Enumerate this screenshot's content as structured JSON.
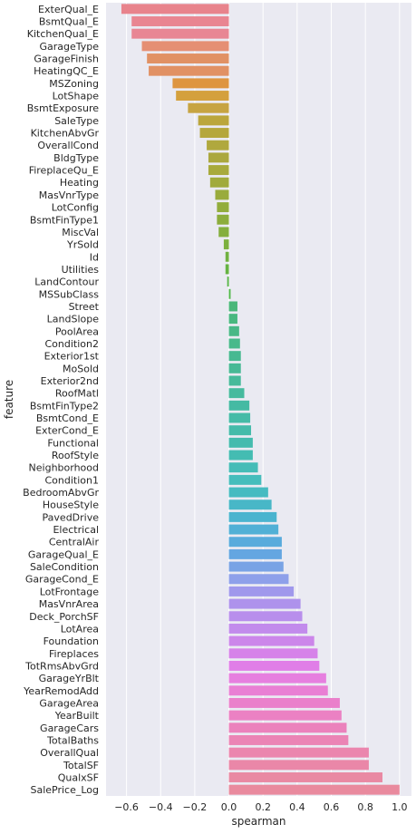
{
  "chart_data": {
    "type": "bar",
    "orientation": "horizontal",
    "xlabel": "spearman",
    "ylabel": "feature",
    "xlim": [
      -0.72,
      1.07
    ],
    "xticks": [
      "−0.6",
      "−0.4",
      "−0.2",
      "0.0",
      "0.2",
      "0.4",
      "0.6",
      "0.8",
      "1.0"
    ],
    "xtick_values": [
      -0.6,
      -0.4,
      -0.2,
      0.0,
      0.2,
      0.4,
      0.6,
      0.8,
      1.0
    ],
    "grid": true,
    "background": "#eaeaf2",
    "categories": [
      "ExterQual_E",
      "BsmtQual_E",
      "KitchenQual_E",
      "GarageType",
      "GarageFinish",
      "HeatingQC_E",
      "MSZoning",
      "LotShape",
      "BsmtExposure",
      "SaleType",
      "KitchenAbvGr",
      "OverallCond",
      "BldgType",
      "FireplaceQu_E",
      "Heating",
      "MasVnrType",
      "LotConfig",
      "BsmtFinType1",
      "MiscVal",
      "YrSold",
      "Id",
      "Utilities",
      "LandContour",
      "MSSubClass",
      "Street",
      "LandSlope",
      "PoolArea",
      "Condition2",
      "Exterior1st",
      "MoSold",
      "Exterior2nd",
      "RoofMatl",
      "BsmtFinType2",
      "BsmtCond_E",
      "ExterCond_E",
      "Functional",
      "RoofStyle",
      "Neighborhood",
      "Condition1",
      "BedroomAbvGr",
      "HouseStyle",
      "PavedDrive",
      "Electrical",
      "CentralAir",
      "GarageQual_E",
      "SaleCondition",
      "GarageCond_E",
      "LotFrontage",
      "MasVnrArea",
      "Deck_PorchSF",
      "LotArea",
      "Foundation",
      "Fireplaces",
      "TotRmsAbvGrd",
      "GarageYrBlt",
      "YearRemodAdd",
      "GarageArea",
      "YearBuilt",
      "GarageCars",
      "TotalBaths",
      "OverallQual",
      "TotalSF",
      "QualxSF",
      "SalePrice_Log"
    ],
    "values": [
      -0.63,
      -0.57,
      -0.57,
      -0.51,
      -0.48,
      -0.47,
      -0.33,
      -0.31,
      -0.24,
      -0.18,
      -0.17,
      -0.13,
      -0.12,
      -0.12,
      -0.11,
      -0.08,
      -0.07,
      -0.07,
      -0.06,
      -0.03,
      -0.02,
      -0.02,
      -0.01,
      0.01,
      0.05,
      0.05,
      0.06,
      0.065,
      0.07,
      0.07,
      0.07,
      0.09,
      0.12,
      0.125,
      0.13,
      0.14,
      0.14,
      0.17,
      0.19,
      0.23,
      0.25,
      0.28,
      0.29,
      0.31,
      0.31,
      0.32,
      0.35,
      0.38,
      0.42,
      0.43,
      0.46,
      0.5,
      0.52,
      0.53,
      0.57,
      0.58,
      0.65,
      0.66,
      0.69,
      0.7,
      0.82,
      0.82,
      0.9,
      1.0
    ],
    "colors": [
      "#e8838c",
      "#e98591",
      "#e88694",
      "#e58f73",
      "#e19164",
      "#e19164",
      "#de9540",
      "#d4a03d",
      "#c7a442",
      "#bba63c",
      "#b5a73c",
      "#b0a83e",
      "#aba83e",
      "#a8aa3c",
      "#a1ab3c",
      "#99ab3c",
      "#92ad3c",
      "#8cad3c",
      "#84af3d",
      "#7cb03e",
      "#70b141",
      "#66b343",
      "#58b548",
      "#4fb749",
      "#4ab77a",
      "#49b880",
      "#49b887",
      "#48b98b",
      "#47b991",
      "#47b995",
      "#46ba9a",
      "#46ba9e",
      "#45baa3",
      "#45bba7",
      "#45bbaa",
      "#45bbae",
      "#44bcb2",
      "#45bcb7",
      "#45bdbc",
      "#46bbc1",
      "#48b7c7",
      "#4ab4cf",
      "#51b0d6",
      "#58abdc",
      "#64a6e1",
      "#79a3e5",
      "#8ea0ea",
      "#a098ec",
      "#ae92ec",
      "#b88eec",
      "#c28bec",
      "#cc86ea",
      "#d682e9",
      "#e07ee7",
      "#e67fdf",
      "#e97fd4",
      "#ea80cb",
      "#eb81c3",
      "#eb82bc",
      "#eb84b5",
      "#eb86ae",
      "#ea87a8",
      "#e989a3",
      "#e98a9e"
    ]
  }
}
